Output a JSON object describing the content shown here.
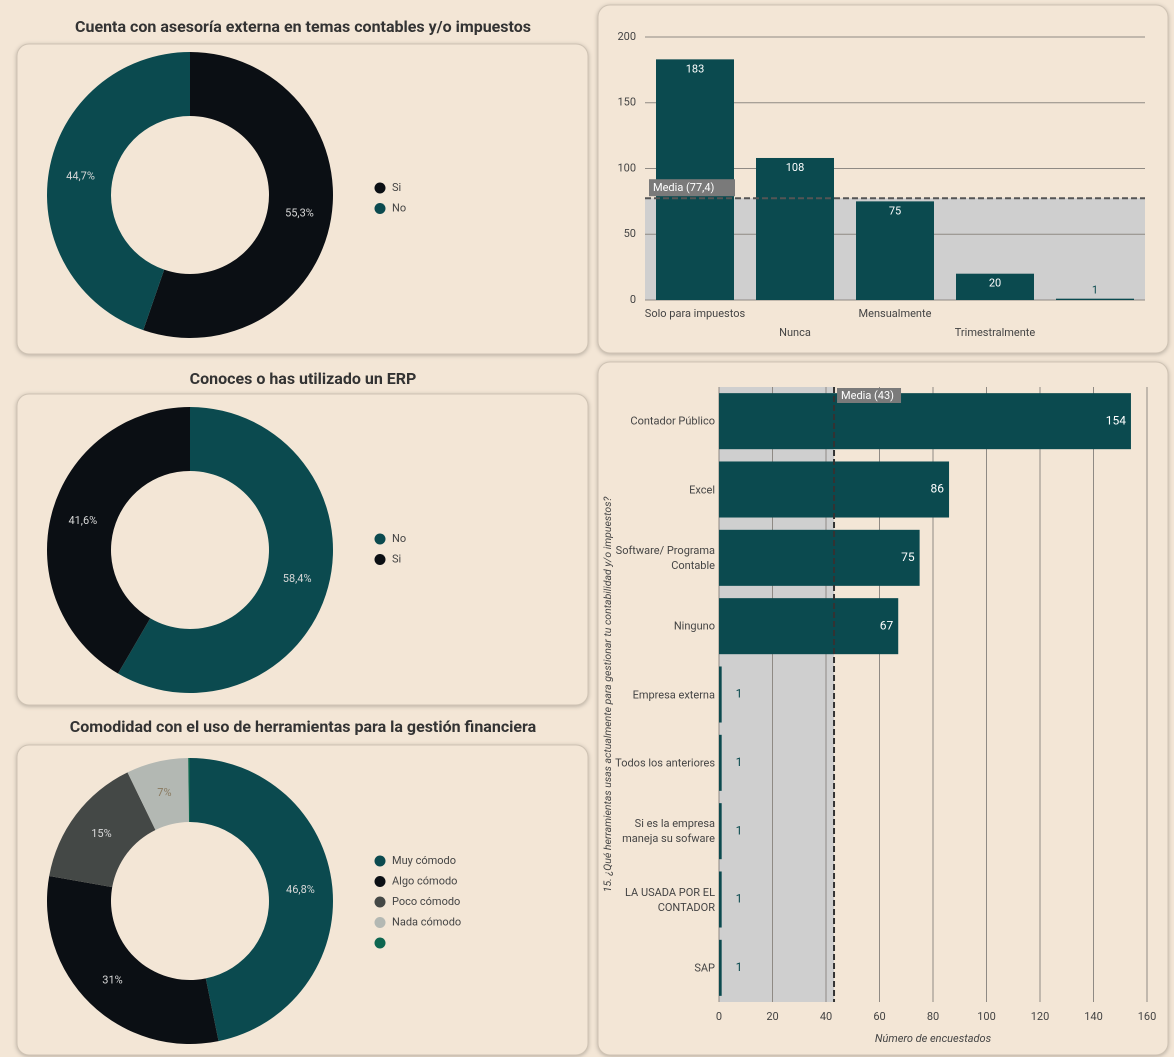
{
  "chart_data": [
    {
      "type": "donut",
      "title": "Cuenta con asesoría externa en temas contables y/o impuestos",
      "categories": [
        "Si",
        "No"
      ],
      "values": [
        55.3,
        44.7
      ],
      "value_labels": [
        "55,3%",
        "44,7%"
      ],
      "colors": [
        "#0b0f14",
        "#0b4a4f"
      ],
      "legend": "right"
    },
    {
      "type": "bar",
      "categories": [
        "Solo para impuestos",
        "Nunca",
        "Mensualmente",
        "Trimestralmente",
        null
      ],
      "values": [
        183,
        108,
        75,
        20,
        1
      ],
      "color": "#0b4a4f",
      "ylim": [
        0,
        200
      ],
      "yticks": [
        0,
        50,
        100,
        150,
        200
      ],
      "grid": true,
      "mean": {
        "value": 77.4,
        "label": "Media (77,4)"
      }
    },
    {
      "type": "donut",
      "title": "Conoces o has utilizado un ERP",
      "categories": [
        "No",
        "Si"
      ],
      "values": [
        58.4,
        41.6
      ],
      "value_labels": [
        "58,4%",
        "41,6%"
      ],
      "colors": [
        "#0b4a4f",
        "#0b0f14"
      ],
      "legend": "right"
    },
    {
      "type": "donut",
      "title": "Comodidad con el uso de herramientas para la gestión financiera",
      "categories": [
        "Muy cómodo",
        "Algo cómodo",
        "Poco cómodo",
        "Nada cómodo",
        null
      ],
      "values": [
        46.8,
        31,
        15,
        7,
        0.2
      ],
      "value_labels": [
        "46,8%",
        "31%",
        "15%",
        "7%",
        null
      ],
      "colors": [
        "#0b4a4f",
        "#0b0f14",
        "#444846",
        "#b3b8b3",
        "#0d6650"
      ],
      "legend": "right"
    },
    {
      "type": "hbar",
      "categories": [
        "Contador Público",
        "Excel",
        "Software/ Programa Contable",
        "Ninguno",
        "Empresa externa",
        "Todos los anteriores",
        "Si es la empresa maneja su sofware",
        "LA USADA POR EL CONTADOR",
        "SAP"
      ],
      "values": [
        154,
        86,
        75,
        67,
        1,
        1,
        1,
        1,
        1
      ],
      "color": "#0b4a4f",
      "xlim": [
        0,
        160
      ],
      "xticks": [
        0,
        20,
        40,
        60,
        80,
        100,
        120,
        140,
        160
      ],
      "grid": true,
      "mean": {
        "value": 43,
        "label": "Media (43)"
      },
      "x_label": "Número de encuestados",
      "y_label": "15. ¿Qué herramientas usas actualmente para gestionar tu contabilidad y/o impuestos?"
    }
  ]
}
